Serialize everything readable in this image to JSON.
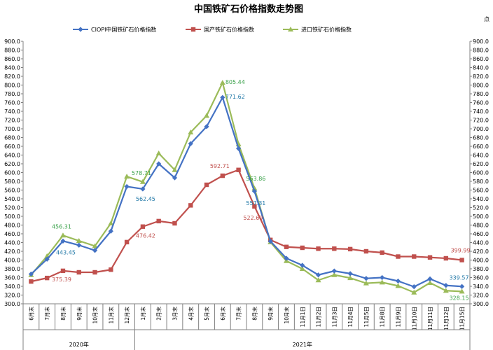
{
  "chart_data": {
    "type": "line",
    "title": "中国铁矿石价格指数走势图",
    "y_axis_corner_label": "点",
    "categories": [
      "6月末",
      "7月末",
      "8月末",
      "9月末",
      "10月末",
      "11月末",
      "12月末",
      "1月末",
      "2月末",
      "3月末",
      "4月末",
      "5月末",
      "6月末",
      "7月末",
      "8月末",
      "9月末",
      "10月末",
      "11月1日",
      "11月2日",
      "11月3日",
      "11月4日",
      "11月5日",
      "11月8日",
      "11月9日",
      "11月10日",
      "11月11日",
      "11月12日",
      "11月15日"
    ],
    "year_groups": [
      {
        "label": "2020年",
        "start": 0,
        "end": 6
      },
      {
        "label": "2021年",
        "start": 7,
        "end": 27
      }
    ],
    "ylim": [
      300,
      900
    ],
    "yticks": [
      "300.0",
      "320.0",
      "340.0",
      "360.0",
      "380.0",
      "400.0",
      "420.0",
      "440.0",
      "460.0",
      "480.0",
      "500.0",
      "520.0",
      "540.0",
      "560.0",
      "580.0",
      "600.0",
      "620.0",
      "640.0",
      "660.0",
      "680.0",
      "700.0",
      "720.0",
      "740.0",
      "760.0",
      "780.0",
      "800.0",
      "820.0",
      "840.0",
      "860.0",
      "880.0",
      "900.0"
    ],
    "grid": false,
    "legend_position": "top",
    "series": [
      {
        "name": "CIOPI中国铁矿石价格指数",
        "color": "#4472C4",
        "marker": "diamond",
        "values": [
          368,
          402,
          443.45,
          434,
          422,
          466,
          568,
          562.45,
          620,
          588,
          666,
          705,
          771.62,
          655,
          557.31,
          443,
          404,
          388,
          366,
          375,
          369,
          358,
          360,
          352,
          339,
          357,
          342,
          339.57
        ]
      },
      {
        "name": "国产铁矿石价格指数",
        "color": "#C0504D",
        "marker": "square",
        "values": [
          351,
          359,
          375.39,
          372,
          372,
          378,
          441,
          476.42,
          489,
          484,
          525,
          572,
          592.71,
          606,
          522.69,
          446,
          430,
          428,
          426,
          426,
          425,
          420,
          417,
          408,
          408,
          406,
          404,
          399.99
        ]
      },
      {
        "name": "进口铁矿石价格指数",
        "color": "#9BBB59",
        "marker": "triangle",
        "values": [
          366,
          409,
          456.31,
          444,
          432,
          484,
          591,
          578.71,
          644,
          606,
          692,
          730,
          805.44,
          665,
          563.86,
          441,
          398,
          380,
          354,
          366,
          359,
          347,
          349,
          341,
          326,
          348,
          330,
          328.15
        ]
      }
    ],
    "data_labels": [
      {
        "series": 0,
        "index": 2,
        "text": "443.45"
      },
      {
        "series": 0,
        "index": 7,
        "text": "562.45"
      },
      {
        "series": 0,
        "index": 12,
        "text": "771.62"
      },
      {
        "series": 0,
        "index": 14,
        "text": "557.31"
      },
      {
        "series": 0,
        "index": 27,
        "text": "339.57"
      },
      {
        "series": 1,
        "index": 2,
        "text": "375.39"
      },
      {
        "series": 1,
        "index": 7,
        "text": "476.42"
      },
      {
        "series": 1,
        "index": 12,
        "text": "592.71"
      },
      {
        "series": 1,
        "index": 14,
        "text": "522.69"
      },
      {
        "series": 1,
        "index": 27,
        "text": "399.99"
      },
      {
        "series": 2,
        "index": 2,
        "text": "456.31"
      },
      {
        "series": 2,
        "index": 7,
        "text": "578.71"
      },
      {
        "series": 2,
        "index": 12,
        "text": "805.44"
      },
      {
        "series": 2,
        "index": 14,
        "text": "563.86"
      },
      {
        "series": 2,
        "index": 27,
        "text": "328.15"
      }
    ]
  }
}
